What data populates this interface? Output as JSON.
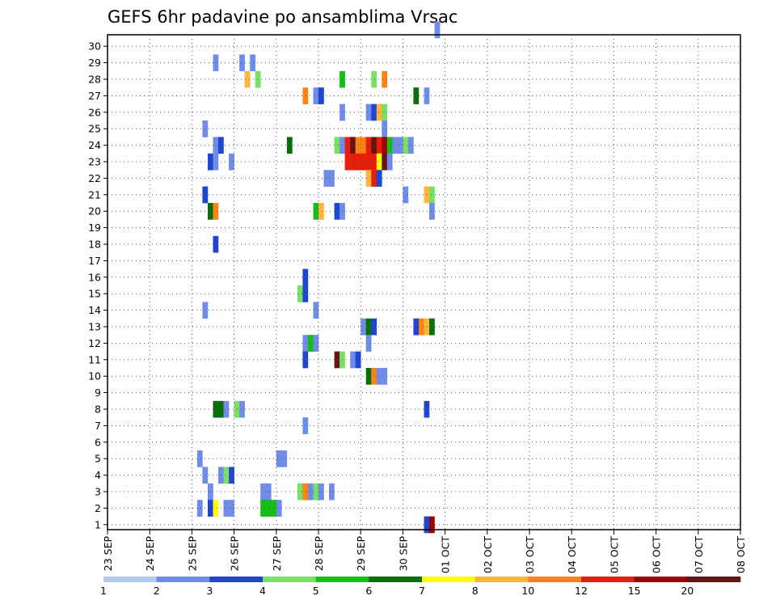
{
  "chart_data": {
    "type": "heatmap",
    "title": "GEFS 6hr padavine po ansamblima Vrsac",
    "xlabel": "",
    "ylabel": "",
    "x_ticks": [
      "23 SEP",
      "24 SEP",
      "25 SEP",
      "26 SEP",
      "27 SEP",
      "28 SEP",
      "29 SEP",
      "30 SEP",
      "01 OCT",
      "02 OCT",
      "03 OCT",
      "04 OCT",
      "05 OCT",
      "06 OCT",
      "07 OCT",
      "08 OCT"
    ],
    "xlim": [
      0,
      60
    ],
    "y_members": [
      1,
      2,
      3,
      4,
      5,
      6,
      7,
      8,
      9,
      10,
      11,
      12,
      13,
      14,
      15,
      16,
      17,
      18,
      19,
      20,
      21,
      22,
      23,
      24,
      25,
      26,
      27,
      28,
      29,
      30
    ],
    "grid": true,
    "colorbar": {
      "boundaries": [
        "1",
        "2",
        "3",
        "4",
        "5",
        "6",
        "7",
        "8",
        "10",
        "12",
        "15",
        "20"
      ],
      "colors": [
        "#b4c8f2",
        "#6e8ce8",
        "#1e46d2",
        "#78e164",
        "#14be14",
        "#0a6e0a",
        "#ffff00",
        "#ffb43c",
        "#ff8214",
        "#e61e0a",
        "#a00000",
        "#641414"
      ]
    },
    "cells": [
      [
        31,
        30,
        1
      ],
      [
        10,
        28,
        1
      ],
      [
        12.5,
        28,
        1
      ],
      [
        13.5,
        28,
        1
      ],
      [
        13,
        27,
        7
      ],
      [
        14,
        27,
        3
      ],
      [
        22,
        27,
        4
      ],
      [
        25,
        27,
        3
      ],
      [
        26,
        27,
        8
      ],
      [
        18.5,
        26,
        8
      ],
      [
        19.5,
        26,
        1
      ],
      [
        20,
        26,
        2
      ],
      [
        29,
        26,
        5
      ],
      [
        30,
        26,
        1
      ],
      [
        22,
        25,
        1
      ],
      [
        24.5,
        25,
        1
      ],
      [
        25,
        25,
        2
      ],
      [
        25.5,
        25,
        7
      ],
      [
        26,
        25,
        3
      ],
      [
        9,
        24,
        1
      ],
      [
        26,
        24,
        1
      ],
      [
        10,
        23,
        1
      ],
      [
        10.5,
        23,
        2
      ],
      [
        17,
        23,
        5
      ],
      [
        21.5,
        23,
        3
      ],
      [
        22,
        23,
        1
      ],
      [
        22.5,
        23,
        9
      ],
      [
        23,
        23,
        11
      ],
      [
        23.5,
        23,
        8
      ],
      [
        24,
        23,
        8
      ],
      [
        24.5,
        23,
        9
      ],
      [
        25,
        23,
        11
      ],
      [
        25.5,
        23,
        9
      ],
      [
        26,
        23,
        10
      ],
      [
        26.5,
        23,
        4
      ],
      [
        27,
        23,
        1
      ],
      [
        27.5,
        23,
        1
      ],
      [
        28,
        23,
        3
      ],
      [
        28.5,
        23,
        1
      ],
      [
        9.5,
        22,
        2
      ],
      [
        10,
        22,
        1
      ],
      [
        11.5,
        22,
        1
      ],
      [
        22.5,
        22,
        9
      ],
      [
        23,
        22,
        9
      ],
      [
        23.5,
        22,
        9
      ],
      [
        24,
        22,
        9
      ],
      [
        24.5,
        22,
        9
      ],
      [
        25,
        22,
        9
      ],
      [
        25.5,
        22,
        6
      ],
      [
        26,
        22,
        11
      ],
      [
        26.5,
        22,
        1
      ],
      [
        20.5,
        21,
        1
      ],
      [
        21,
        21,
        1
      ],
      [
        24.5,
        21,
        7
      ],
      [
        25,
        21,
        9
      ],
      [
        25.5,
        21,
        2
      ],
      [
        9,
        20,
        2
      ],
      [
        28,
        20,
        1
      ],
      [
        30,
        20,
        7
      ],
      [
        30.5,
        20,
        3
      ],
      [
        9.5,
        19,
        5
      ],
      [
        10,
        19,
        8
      ],
      [
        19.5,
        19,
        4
      ],
      [
        20,
        19,
        7
      ],
      [
        21.5,
        19,
        2
      ],
      [
        22,
        19,
        1
      ],
      [
        30.5,
        19,
        1
      ],
      [
        10,
        17,
        2
      ],
      [
        18.5,
        15,
        2
      ],
      [
        18,
        14,
        3
      ],
      [
        18.5,
        14,
        2
      ],
      [
        9,
        13,
        1
      ],
      [
        19.5,
        13,
        1
      ],
      [
        24,
        12,
        1
      ],
      [
        24.5,
        12,
        5
      ],
      [
        25,
        12,
        2
      ],
      [
        29,
        12,
        2
      ],
      [
        29.5,
        12,
        8
      ],
      [
        30,
        12,
        7
      ],
      [
        30.5,
        12,
        5
      ],
      [
        18.5,
        11,
        1
      ],
      [
        19,
        11,
        4
      ],
      [
        19.5,
        11,
        1
      ],
      [
        24.5,
        11,
        1
      ],
      [
        18.5,
        10,
        2
      ],
      [
        21.5,
        10,
        11
      ],
      [
        22,
        10,
        3
      ],
      [
        23,
        10,
        1
      ],
      [
        23.5,
        10,
        2
      ],
      [
        24.5,
        9,
        5
      ],
      [
        25,
        9,
        8
      ],
      [
        25.5,
        9,
        1
      ],
      [
        26,
        9,
        1
      ],
      [
        10,
        7,
        5
      ],
      [
        10.5,
        7,
        5
      ],
      [
        11,
        7,
        1
      ],
      [
        12,
        7,
        3
      ],
      [
        12.5,
        7,
        1
      ],
      [
        30,
        7,
        2
      ],
      [
        18.5,
        6,
        1
      ],
      [
        8.5,
        4,
        1
      ],
      [
        16,
        4,
        1
      ],
      [
        16.5,
        4,
        1
      ],
      [
        9,
        3,
        1
      ],
      [
        10.5,
        3,
        1
      ],
      [
        11,
        3,
        3
      ],
      [
        11.5,
        3,
        2
      ],
      [
        9.5,
        2,
        1
      ],
      [
        14.5,
        2,
        1
      ],
      [
        15,
        2,
        1
      ],
      [
        18,
        2,
        3
      ],
      [
        18.5,
        2,
        8
      ],
      [
        19,
        2,
        1
      ],
      [
        19.5,
        2,
        3
      ],
      [
        20,
        2,
        1
      ],
      [
        21,
        2,
        1
      ],
      [
        8.5,
        1,
        1
      ],
      [
        9.5,
        1,
        2
      ],
      [
        10,
        1,
        6
      ],
      [
        11,
        1,
        1
      ],
      [
        11.5,
        1,
        1
      ],
      [
        14.5,
        1,
        4
      ],
      [
        15,
        1,
        4
      ],
      [
        15.5,
        1,
        4
      ],
      [
        16,
        1,
        1
      ],
      [
        30,
        0,
        2
      ],
      [
        30.5,
        0,
        10
      ]
    ]
  }
}
